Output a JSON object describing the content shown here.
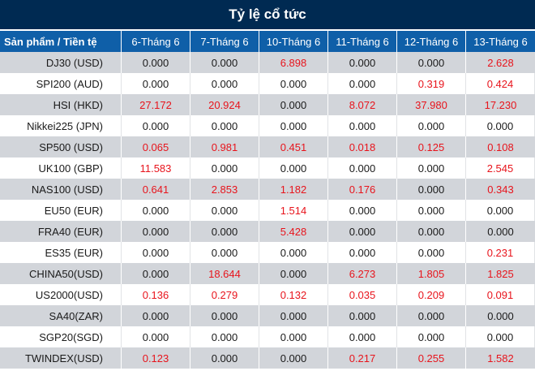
{
  "title": "Tỷ lệ cổ tức",
  "colors": {
    "title_bg": "#002a52",
    "header_bg": "#0f5fa8",
    "row_shade": "#d2d5da",
    "positive_value": "#e8141c",
    "zero_value": "#1a1a1a"
  },
  "table": {
    "headers": [
      "Sản phẩm / Tiền tệ",
      "6-Tháng 6",
      "7-Tháng 6",
      "10-Tháng 6",
      "11-Tháng 6",
      "12-Tháng 6",
      "13-Tháng 6"
    ],
    "rows": [
      {
        "product": "DJ30 (USD)",
        "values": [
          "0.000",
          "0.000",
          "6.898",
          "0.000",
          "0.000",
          "2.628"
        ]
      },
      {
        "product": "SPI200 (AUD)",
        "values": [
          "0.000",
          "0.000",
          "0.000",
          "0.000",
          "0.319",
          "0.424"
        ]
      },
      {
        "product": "HSI (HKD)",
        "values": [
          "27.172",
          "20.924",
          "0.000",
          "8.072",
          "37.980",
          "17.230"
        ]
      },
      {
        "product": "Nikkei225 (JPN)",
        "values": [
          "0.000",
          "0.000",
          "0.000",
          "0.000",
          "0.000",
          "0.000"
        ]
      },
      {
        "product": "SP500 (USD)",
        "values": [
          "0.065",
          "0.981",
          "0.451",
          "0.018",
          "0.125",
          "0.108"
        ]
      },
      {
        "product": "UK100 (GBP)",
        "values": [
          "11.583",
          "0.000",
          "0.000",
          "0.000",
          "0.000",
          "2.545"
        ]
      },
      {
        "product": "NAS100 (USD)",
        "values": [
          "0.641",
          "2.853",
          "1.182",
          "0.176",
          "0.000",
          "0.343"
        ]
      },
      {
        "product": "EU50 (EUR)",
        "values": [
          "0.000",
          "0.000",
          "1.514",
          "0.000",
          "0.000",
          "0.000"
        ]
      },
      {
        "product": "FRA40 (EUR)",
        "values": [
          "0.000",
          "0.000",
          "5.428",
          "0.000",
          "0.000",
          "0.000"
        ]
      },
      {
        "product": "ES35 (EUR)",
        "values": [
          "0.000",
          "0.000",
          "0.000",
          "0.000",
          "0.000",
          "0.231"
        ]
      },
      {
        "product": "CHINA50(USD)",
        "values": [
          "0.000",
          "18.644",
          "0.000",
          "6.273",
          "1.805",
          "1.825"
        ]
      },
      {
        "product": "US2000(USD)",
        "values": [
          "0.136",
          "0.279",
          "0.132",
          "0.035",
          "0.209",
          "0.091"
        ]
      },
      {
        "product": "SA40(ZAR)",
        "values": [
          "0.000",
          "0.000",
          "0.000",
          "0.000",
          "0.000",
          "0.000"
        ]
      },
      {
        "product": "SGP20(SGD)",
        "values": [
          "0.000",
          "0.000",
          "0.000",
          "0.000",
          "0.000",
          "0.000"
        ]
      },
      {
        "product": "TWINDEX(USD)",
        "values": [
          "0.123",
          "0.000",
          "0.000",
          "0.217",
          "0.255",
          "1.582"
        ]
      }
    ]
  }
}
